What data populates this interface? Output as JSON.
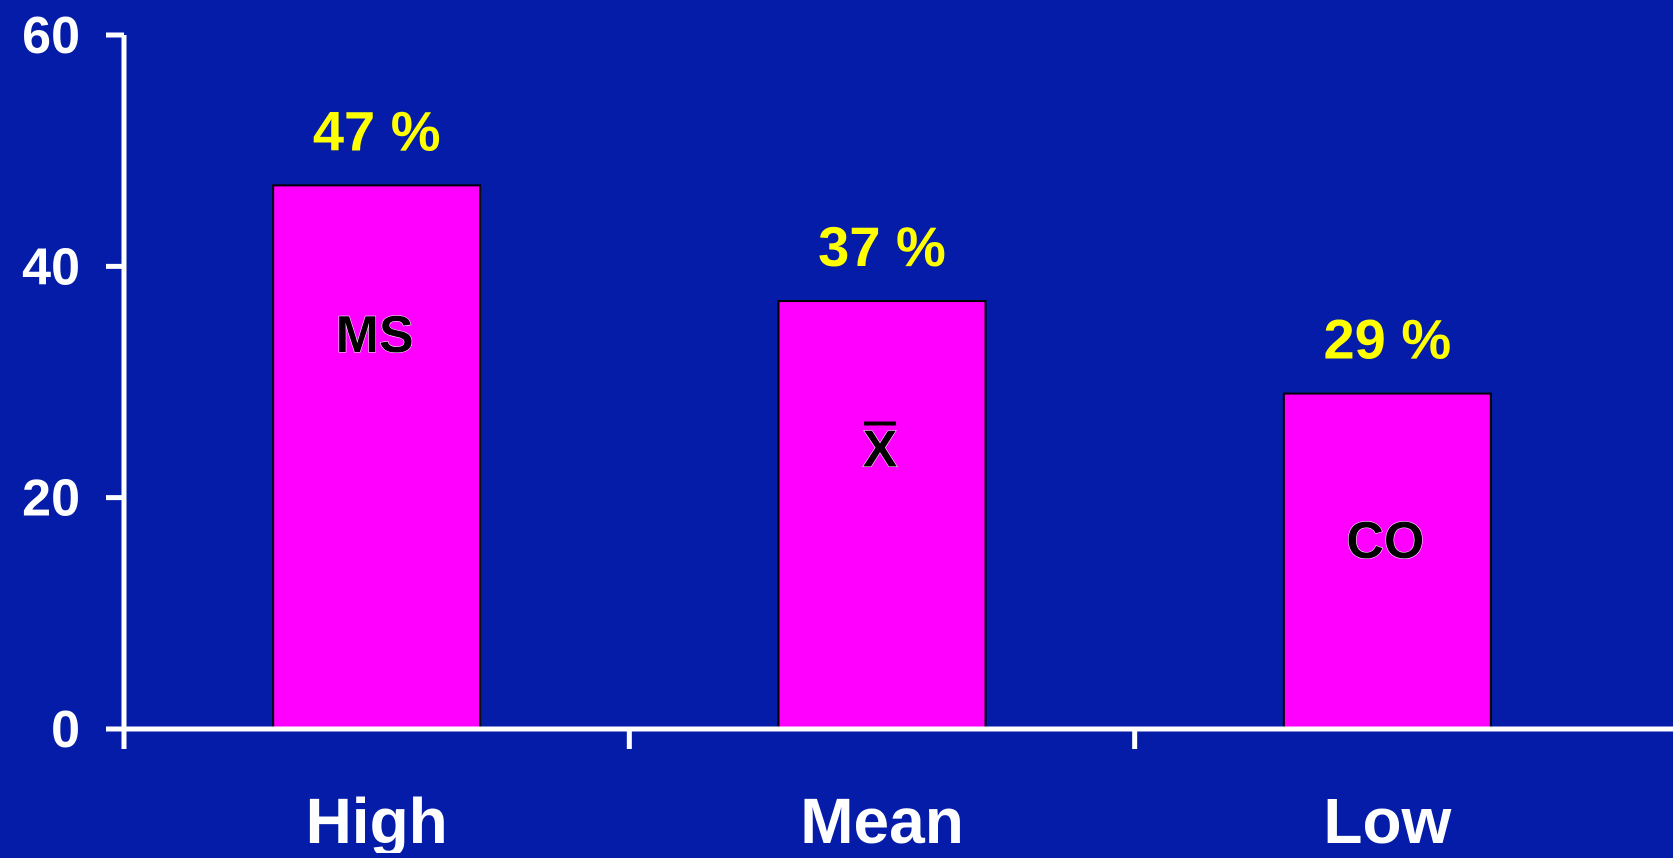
{
  "chart_data": {
    "type": "bar",
    "categories": [
      "High",
      "Mean",
      "Low"
    ],
    "values": [
      47,
      37,
      29
    ],
    "data_labels": [
      "47 %",
      "37 %",
      "29 %"
    ],
    "bar_inner_labels": [
      "MS",
      "X",
      "CO"
    ],
    "y_ticks": [
      "0",
      "20",
      "40",
      "60"
    ],
    "ylim": [
      0,
      60
    ],
    "title": "",
    "xlabel": "",
    "ylabel": "",
    "grid": false,
    "legend": "none"
  },
  "colors": {
    "background": "#041ca8",
    "bar_fill": "#ff00ff",
    "bar_stroke": "#000000",
    "axis": "#ffffff",
    "tick_label": "#ffffff",
    "data_label": "#ffff00",
    "inner_label": "#000000"
  }
}
